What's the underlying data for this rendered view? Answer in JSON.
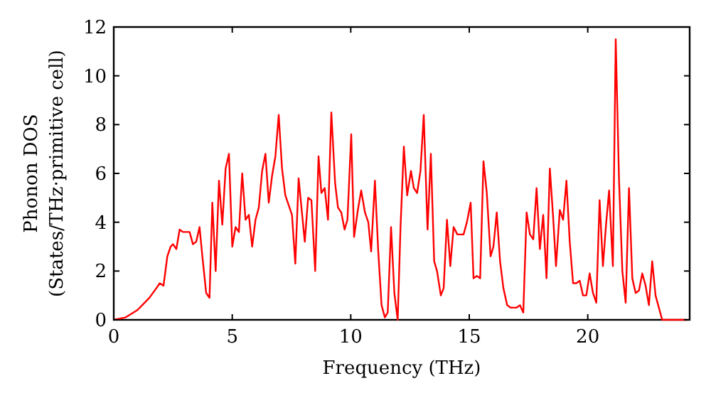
{
  "chart_data": {
    "type": "line",
    "xlabel": "Frequency (THz)",
    "ylabel": "Phonon DOS\n(States/THz·primitive cell)",
    "xlim": [
      0,
      24.3
    ],
    "ylim": [
      0,
      12
    ],
    "xticks": [
      0,
      5,
      10,
      15,
      20
    ],
    "yticks": [
      0,
      2,
      4,
      6,
      8,
      10,
      12
    ],
    "grid": false,
    "marker": "none",
    "line_style": "solid",
    "x": [
      0,
      0.5,
      1.0,
      1.5,
      1.8,
      1.94,
      2.1,
      2.26,
      2.4,
      2.5,
      2.64,
      2.78,
      2.92,
      3.06,
      3.2,
      3.34,
      3.48,
      3.62,
      3.76,
      3.9,
      4.04,
      4.16,
      4.3,
      4.44,
      4.58,
      4.72,
      4.86,
      5.0,
      5.14,
      5.28,
      5.42,
      5.56,
      5.7,
      5.84,
      5.98,
      6.12,
      6.26,
      6.4,
      6.54,
      6.68,
      6.82,
      6.96,
      7.1,
      7.24,
      7.38,
      7.52,
      7.66,
      7.8,
      8.06,
      8.2,
      8.34,
      8.5,
      8.64,
      8.76,
      8.9,
      9.04,
      9.18,
      9.34,
      9.46,
      9.6,
      9.74,
      9.86,
      10.02,
      10.14,
      10.3,
      10.44,
      10.6,
      10.74,
      10.86,
      11.02,
      11.16,
      11.3,
      11.44,
      11.56,
      11.7,
      11.84,
      11.98,
      12.1,
      12.24,
      12.38,
      12.54,
      12.66,
      12.8,
      12.94,
      13.08,
      13.24,
      13.38,
      13.52,
      13.64,
      13.8,
      13.92,
      14.06,
      14.2,
      14.34,
      14.5,
      14.76,
      14.9,
      15.06,
      15.18,
      15.32,
      15.46,
      15.6,
      15.74,
      15.9,
      16.02,
      16.16,
      16.3,
      16.44,
      16.6,
      16.74,
      17.0,
      17.14,
      17.28,
      17.42,
      17.56,
      17.7,
      17.84,
      17.98,
      18.12,
      18.26,
      18.4,
      18.54,
      18.66,
      18.82,
      18.96,
      19.1,
      19.24,
      19.38,
      19.52,
      19.66,
      19.8,
      19.94,
      20.08,
      20.22,
      20.36,
      20.5,
      20.64,
      20.78,
      20.9,
      21.06,
      21.18,
      21.32,
      21.46,
      21.6,
      21.74,
      21.88,
      22.02,
      22.16,
      22.3,
      22.44,
      22.58,
      22.72,
      22.86,
      23.0,
      23.14,
      24.2
    ],
    "series": [
      {
        "color": "#ff0000",
        "values": [
          0,
          0.1,
          0.4,
          0.9,
          1.3,
          1.5,
          1.4,
          2.6,
          3.0,
          3.1,
          2.9,
          3.7,
          3.6,
          3.6,
          3.6,
          3.1,
          3.2,
          3.8,
          2.4,
          1.1,
          0.9,
          4.8,
          2.0,
          5.7,
          3.9,
          6.2,
          6.8,
          3.0,
          3.8,
          3.6,
          6.0,
          4.1,
          4.3,
          3.0,
          4.1,
          4.6,
          6.1,
          6.8,
          4.8,
          5.9,
          6.7,
          8.4,
          6.2,
          5.1,
          4.7,
          4.3,
          2.3,
          5.8,
          3.2,
          5.0,
          4.9,
          2.0,
          6.7,
          5.2,
          5.4,
          4.1,
          8.5,
          5.6,
          4.6,
          4.4,
          3.7,
          4.1,
          7.6,
          3.4,
          4.5,
          5.3,
          4.4,
          4.0,
          2.8,
          5.7,
          2.8,
          0.6,
          0.1,
          0.3,
          3.8,
          1.1,
          0,
          3.8,
          7.1,
          5.1,
          6.1,
          5.4,
          5.2,
          6.1,
          8.4,
          3.7,
          6.8,
          2.4,
          2.0,
          1.0,
          1.3,
          4.1,
          2.2,
          3.8,
          3.5,
          3.5,
          4.0,
          4.8,
          1.7,
          1.8,
          1.7,
          6.5,
          5.2,
          2.6,
          3.0,
          4.4,
          2.4,
          1.3,
          0.6,
          0.5,
          0.5,
          0.6,
          0.3,
          4.4,
          3.5,
          3.3,
          5.4,
          2.9,
          4.3,
          1.7,
          6.2,
          4.2,
          2.2,
          4.5,
          4.1,
          5.7,
          3.2,
          1.5,
          1.5,
          1.6,
          1.0,
          1.0,
          1.9,
          1.1,
          0.7,
          4.9,
          2.2,
          4.0,
          5.3,
          2.2,
          11.5,
          5.7,
          2.0,
          0.7,
          5.4,
          1.7,
          1.1,
          1.2,
          1.9,
          1.4,
          0.6,
          2.4,
          1.0,
          0.5,
          0,
          0
        ]
      }
    ]
  }
}
